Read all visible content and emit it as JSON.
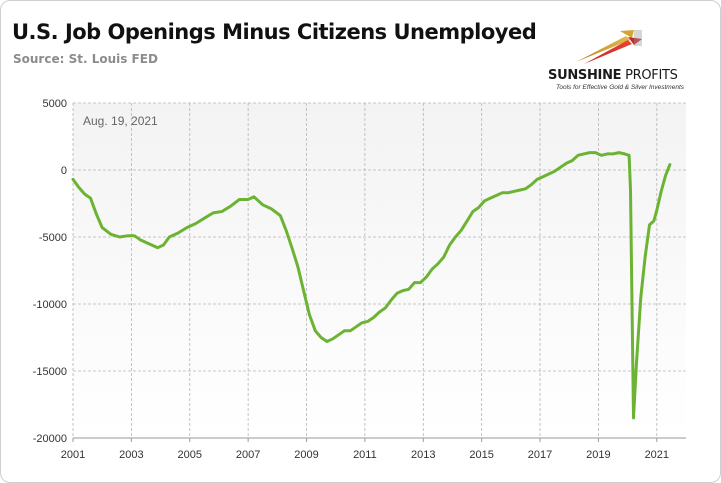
{
  "header": {
    "title": "U.S. Job Openings Minus Citizens Unemployed",
    "source": "Source: St. Louis FED"
  },
  "logo": {
    "name_bold": "SUNSHINE",
    "name_thin": " PROFITS",
    "tagline": "Tools for Effective Gold & Silver Investments"
  },
  "colors": {
    "series": "#6cb333",
    "plot_background_top": "#f3f3f3",
    "plot_background_bottom": "#ffffff",
    "grid": "#b5b5b5"
  },
  "chart_data": {
    "type": "line",
    "title": "U.S. Job Openings Minus Citizens Unemployed",
    "subtitle": "Source: St. Louis FED",
    "annotation": "Aug. 19, 2021",
    "xlabel": "",
    "ylabel": "",
    "xlim": [
      2001,
      2022
    ],
    "ylim": [
      -20000,
      5000
    ],
    "x_ticks": [
      "2001",
      "2003",
      "2005",
      "2007",
      "2009",
      "2011",
      "2013",
      "2015",
      "2017",
      "2019",
      "2021"
    ],
    "y_ticks": [
      "5000",
      "0",
      "-5000",
      "-10000",
      "-15000",
      "-20000"
    ],
    "grid": true,
    "grid_style": "dashed",
    "legend": "none",
    "series": [
      {
        "points": [
          [
            2001.0,
            -700
          ],
          [
            2001.2,
            -1300
          ],
          [
            2001.4,
            -1800
          ],
          [
            2001.6,
            -2100
          ],
          [
            2001.8,
            -3300
          ],
          [
            2002.0,
            -4300
          ],
          [
            2002.3,
            -4800
          ],
          [
            2002.6,
            -5000
          ],
          [
            2002.9,
            -4900
          ],
          [
            2003.1,
            -4900
          ],
          [
            2003.3,
            -5200
          ],
          [
            2003.6,
            -5500
          ],
          [
            2003.9,
            -5800
          ],
          [
            2004.1,
            -5600
          ],
          [
            2004.3,
            -5000
          ],
          [
            2004.6,
            -4700
          ],
          [
            2004.9,
            -4300
          ],
          [
            2005.2,
            -4000
          ],
          [
            2005.5,
            -3600
          ],
          [
            2005.8,
            -3200
          ],
          [
            2006.1,
            -3100
          ],
          [
            2006.4,
            -2700
          ],
          [
            2006.7,
            -2200
          ],
          [
            2007.0,
            -2200
          ],
          [
            2007.2,
            -2000
          ],
          [
            2007.5,
            -2600
          ],
          [
            2007.8,
            -2900
          ],
          [
            2008.1,
            -3400
          ],
          [
            2008.3,
            -4500
          ],
          [
            2008.5,
            -5800
          ],
          [
            2008.7,
            -7200
          ],
          [
            2008.9,
            -9000
          ],
          [
            2009.1,
            -10800
          ],
          [
            2009.3,
            -12000
          ],
          [
            2009.5,
            -12500
          ],
          [
            2009.7,
            -12800
          ],
          [
            2009.9,
            -12600
          ],
          [
            2010.1,
            -12300
          ],
          [
            2010.3,
            -12000
          ],
          [
            2010.5,
            -12000
          ],
          [
            2010.7,
            -11700
          ],
          [
            2010.9,
            -11400
          ],
          [
            2011.1,
            -11300
          ],
          [
            2011.3,
            -11000
          ],
          [
            2011.5,
            -10600
          ],
          [
            2011.7,
            -10300
          ],
          [
            2011.9,
            -9700
          ],
          [
            2012.1,
            -9200
          ],
          [
            2012.3,
            -9000
          ],
          [
            2012.5,
            -8900
          ],
          [
            2012.7,
            -8400
          ],
          [
            2012.9,
            -8400
          ],
          [
            2013.1,
            -8000
          ],
          [
            2013.3,
            -7400
          ],
          [
            2013.5,
            -7000
          ],
          [
            2013.7,
            -6500
          ],
          [
            2013.9,
            -5600
          ],
          [
            2014.1,
            -5000
          ],
          [
            2014.3,
            -4500
          ],
          [
            2014.5,
            -3800
          ],
          [
            2014.7,
            -3100
          ],
          [
            2014.9,
            -2800
          ],
          [
            2015.1,
            -2300
          ],
          [
            2015.3,
            -2100
          ],
          [
            2015.5,
            -1900
          ],
          [
            2015.7,
            -1700
          ],
          [
            2015.9,
            -1700
          ],
          [
            2016.1,
            -1600
          ],
          [
            2016.3,
            -1500
          ],
          [
            2016.5,
            -1400
          ],
          [
            2016.7,
            -1100
          ],
          [
            2016.9,
            -700
          ],
          [
            2017.1,
            -500
          ],
          [
            2017.3,
            -300
          ],
          [
            2017.5,
            -100
          ],
          [
            2017.7,
            200
          ],
          [
            2017.9,
            500
          ],
          [
            2018.1,
            700
          ],
          [
            2018.3,
            1100
          ],
          [
            2018.5,
            1200
          ],
          [
            2018.7,
            1300
          ],
          [
            2018.9,
            1300
          ],
          [
            2019.1,
            1100
          ],
          [
            2019.3,
            1200
          ],
          [
            2019.5,
            1200
          ],
          [
            2019.7,
            1300
          ],
          [
            2019.9,
            1200
          ],
          [
            2020.05,
            1100
          ],
          [
            2020.1,
            -1500
          ],
          [
            2020.2,
            -18500
          ],
          [
            2020.3,
            -14500
          ],
          [
            2020.45,
            -9500
          ],
          [
            2020.6,
            -6500
          ],
          [
            2020.75,
            -4100
          ],
          [
            2020.9,
            -3800
          ],
          [
            2021.0,
            -3000
          ],
          [
            2021.15,
            -1600
          ],
          [
            2021.3,
            -400
          ],
          [
            2021.45,
            400
          ]
        ]
      }
    ]
  }
}
